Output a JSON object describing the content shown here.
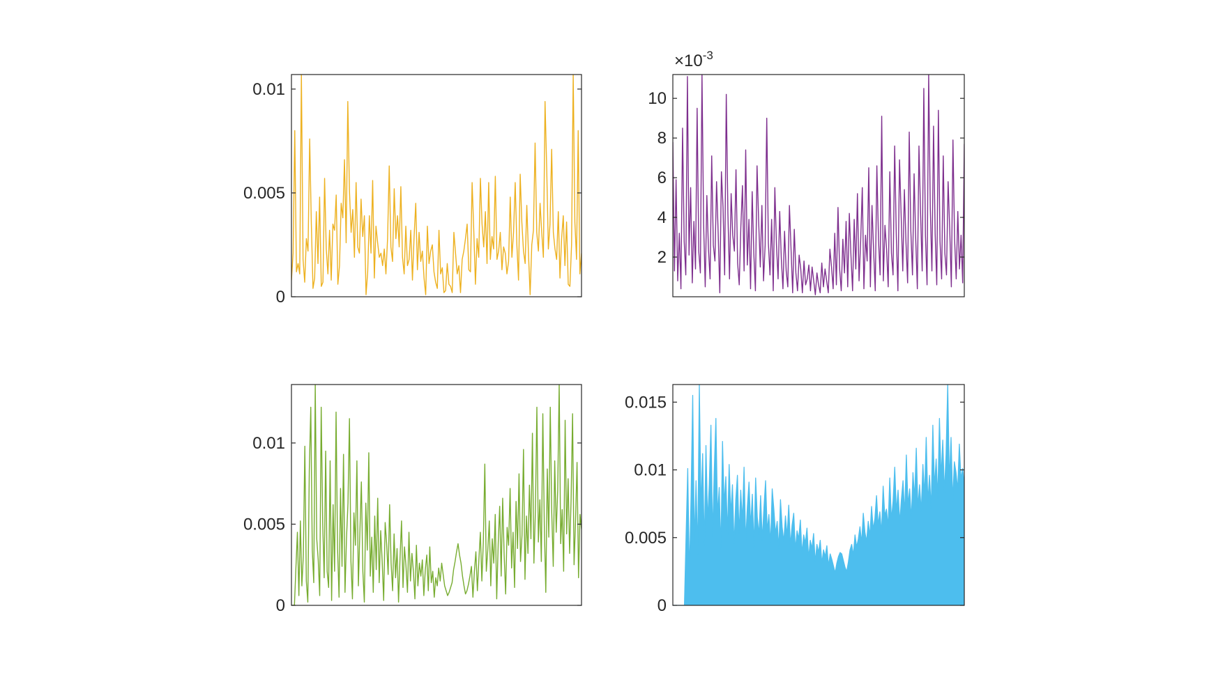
{
  "figure": {
    "background": "#ffffff",
    "axis_color": "#262626"
  },
  "chart_data": [
    {
      "type": "line",
      "title": "",
      "xlabel": "",
      "ylabel": "",
      "color": "#EDB120",
      "ylim": [
        0,
        0.0107
      ],
      "grid": false,
      "yticks": [
        0,
        0.005,
        0.01
      ],
      "ytick_labels": [
        "0",
        "0.005",
        "0.01"
      ],
      "exponent_label": "",
      "series": [
        {
          "values": [
            0.0008,
            0.0021,
            0.008,
            0.0012,
            0.0016,
            0.0011,
            0.0107,
            0.0018,
            0.0007,
            0.0028,
            0.0022,
            0.0076,
            0.0035,
            0.0004,
            0.0009,
            0.0041,
            0.0016,
            0.0048,
            0.0005,
            0.0007,
            0.0057,
            0.0023,
            0.0011,
            0.0032,
            0.0008,
            0.0035,
            0.0032,
            0.0049,
            0.0006,
            0.0015,
            0.0045,
            0.0038,
            0.0066,
            0.0026,
            0.0094,
            0.0051,
            0.0031,
            0.0042,
            0.0019,
            0.0055,
            0.0024,
            0.0021,
            0.0047,
            0.0029,
            0.0039,
            0.0001,
            0.0012,
            0.0039,
            0.0021,
            0.0056,
            0.0009,
            0.0034,
            0.0026,
            0.0019,
            0.0021,
            0.0015,
            0.0023,
            0.0011,
            0.0028,
            0.0063,
            0.0024,
            0.0017,
            0.0052,
            0.0028,
            0.0039,
            0.0024,
            0.0053,
            0.0019,
            0.0011,
            0.0034,
            0.0015,
            0.0018,
            0.0032,
            0.0008,
            0.0029,
            0.0045,
            0.0013,
            0.0031,
            0.0017,
            0.0022,
            0.0009,
            0.0001,
            0.0034,
            0.0016,
            0.0022,
            0.0025,
            0.0012,
            0.0007,
            0.0004,
            0.0032,
            0.0011,
            0.0014,
            0.0002,
            0.0003,
            0.0016,
            0.0006,
            0.0005,
            0.0002,
            0.0031,
            0.0021,
            0.0011,
            0.0015,
            0.0002,
            0.0018,
            0.0022,
            0.0028,
            0.0035,
            0.0013,
            0.0012,
            0.0055,
            0.0032,
            0.0006,
            0.0028,
            0.0019,
            0.0057,
            0.0035,
            0.0024,
            0.0041,
            0.0016,
            0.0055,
            0.0018,
            0.0029,
            0.0023,
            0.0058,
            0.0018,
            0.0022,
            0.0031,
            0.0013,
            0.0024,
            0.0021,
            0.0011,
            0.0017,
            0.0048,
            0.0019,
            0.0031,
            0.0055,
            0.0025,
            0.0008,
            0.0059,
            0.0036,
            0.0022,
            0.0016,
            0.0044,
            0.0021,
            0.0001,
            0.0025,
            0.0032,
            0.0074,
            0.0031,
            0.0022,
            0.0045,
            0.0031,
            0.0019,
            0.0094,
            0.0062,
            0.0023,
            0.0035,
            0.0071,
            0.0031,
            0.0023,
            0.0018,
            0.0041,
            0.0009,
            0.0028,
            0.0039,
            0.0015,
            0.0036,
            0.0006,
            0.0005,
            0.0025,
            0.0107,
            0.0036,
            0.0018,
            0.008,
            0.0011,
            0.0021
          ]
        }
      ]
    },
    {
      "type": "line",
      "title": "",
      "xlabel": "",
      "ylabel": "",
      "color": "#7E2F8E",
      "ylim": [
        0,
        11.2
      ],
      "grid": false,
      "yticks": [
        2,
        4,
        6,
        8,
        10
      ],
      "ytick_labels": [
        "2",
        "4",
        "6",
        "8",
        "10"
      ],
      "exponent_label": "×10",
      "exponent": "-3",
      "series": [
        {
          "values": [
            7.8,
            1.3,
            5.9,
            0.8,
            3.2,
            0.4,
            8.5,
            2.8,
            1.1,
            11.1,
            2.1,
            5.5,
            0.7,
            3.8,
            1.4,
            9.5,
            2.3,
            1.2,
            11.2,
            3.7,
            0.5,
            5.1,
            2.4,
            0.9,
            7.1,
            2.6,
            1.8,
            5.8,
            3.2,
            0.2,
            6.3,
            4.5,
            1.1,
            10.2,
            4.2,
            0.9,
            5.2,
            3.1,
            2.3,
            6.4,
            1.7,
            0.6,
            3.5,
            5.6,
            1.3,
            7.4,
            1.6,
            3.9,
            0.4,
            5.3,
            2.2,
            0.3,
            6.6,
            3.8,
            1.5,
            4.6,
            0.8,
            2.6,
            9.0,
            2.7,
            1.1,
            3.9,
            0.3,
            5.5,
            2.6,
            0.9,
            4.3,
            1.9,
            0.4,
            3.3,
            1.3,
            0.5,
            4.6,
            2.4,
            0.2,
            3.4,
            1.2,
            0.3,
            2.1,
            1.4,
            0.2,
            1.8,
            0.6,
            0.9,
            1.6,
            0.3,
            1.5,
            0.8,
            0.1,
            1.2,
            0.6,
            0.2,
            1.7,
            0.5,
            1.4,
            0.8,
            0.2,
            2.4,
            1.5,
            0.4,
            3.2,
            0.6,
            4.5,
            1.4,
            0.3,
            2.9,
            1.2,
            3.8,
            0.5,
            4.2,
            2.1,
            0.3,
            3.9,
            1.4,
            5.2,
            0.8,
            2.8,
            5.5,
            0.4,
            3.1,
            1.8,
            6.5,
            0.5,
            4.6,
            2.3,
            0.3,
            6.6,
            2.9,
            1.1,
            9.1,
            0.8,
            3.6,
            2.4,
            0.5,
            6.3,
            2.2,
            1.1,
            7.6,
            3.1,
            0.3,
            6.9,
            4.1,
            1.3,
            5.4,
            2.7,
            0.7,
            8.3,
            3.3,
            1.1,
            6.2,
            2.9,
            0.4,
            7.6,
            4.2,
            1.3,
            10.5,
            3.1,
            0.6,
            11.2,
            4.5,
            1.3,
            8.6,
            3.2,
            0.6,
            9.4,
            2.8,
            0.9,
            7.1,
            2.2,
            1.1,
            5.8,
            3.4,
            0.5,
            7.9,
            2.9,
            0.9,
            4.3,
            1.4,
            3.1,
            0.7,
            7.7
          ]
        }
      ]
    },
    {
      "type": "line",
      "title": "",
      "xlabel": "",
      "ylabel": "",
      "color": "#77AC30",
      "ylim": [
        0,
        0.0136
      ],
      "grid": false,
      "yticks": [
        0,
        0.005,
        0.01
      ],
      "ytick_labels": [
        "0",
        "0.005",
        "0.01"
      ],
      "exponent_label": "",
      "series": [
        {
          "values": [
            0,
            0,
            0,
            0.0023,
            0.0045,
            0.0006,
            0.0052,
            0.0012,
            0.0031,
            0.0098,
            0.0015,
            0.0002,
            0.0083,
            0.0122,
            0.0034,
            0.0014,
            0.0136,
            0.0041,
            0.0028,
            0.0006,
            0.0122,
            0.0051,
            0.0017,
            0.0095,
            0.0021,
            0.0011,
            0.0089,
            0.0003,
            0.0062,
            0.0021,
            0.0119,
            0.0035,
            0.0005,
            0.0072,
            0.0024,
            0.0093,
            0.0008,
            0.0041,
            0.0063,
            0.0115,
            0.0027,
            0.0004,
            0.0057,
            0.0037,
            0.0089,
            0.0012,
            0.0045,
            0.0076,
            0.0021,
            0.0002,
            0.0063,
            0.0034,
            0.0094,
            0.0018,
            0.0042,
            0.0008,
            0.0055,
            0.0022,
            0.0066,
            0.0014,
            0.0046,
            0.0027,
            0.0003,
            0.0051,
            0.0038,
            0.0019,
            0.0062,
            0.0026,
            0.0009,
            0.0044,
            0.0017,
            0.0035,
            0.0002,
            0.0029,
            0.0052,
            0.0011,
            0.0036,
            0.0024,
            0.0008,
            0.0045,
            0.0015,
            0.0032,
            0.0021,
            0.0004,
            0.0037,
            0.0012,
            0.0026,
            0.0018,
            0.0028,
            0.0006,
            0.0022,
            0.0031,
            0.0009,
            0.0036,
            0.0014,
            0.0021,
            0.0005,
            0.0017,
            0.0012,
            0.0023,
            0.0015,
            0.0026,
            0.0019,
            0.0012,
            0.0009,
            0.0006,
            0.0008,
            0.0011,
            0.0014,
            0.0022,
            0.0027,
            0.0033,
            0.0038,
            0.0031,
            0.0026,
            0.0018,
            0.0012,
            0.0007,
            0.0009,
            0.0013,
            0.0018,
            0.0024,
            0.0005,
            0.0021,
            0.0033,
            0.0009,
            0.0028,
            0.0045,
            0.0015,
            0.0039,
            0.0087,
            0.0021,
            0.0034,
            0.0052,
            0.0012,
            0.0041,
            0.0026,
            0.0056,
            0.0004,
            0.0038,
            0.0061,
            0.0018,
            0.0066,
            0.0031,
            0.0007,
            0.0048,
            0.0037,
            0.0072,
            0.0023,
            0.0045,
            0.0011,
            0.0064,
            0.0035,
            0.0081,
            0.0027,
            0.0043,
            0.0096,
            0.0016,
            0.0055,
            0.0032,
            0.0074,
            0.0041,
            0.0106,
            0.0026,
            0.0058,
            0.0122,
            0.0039,
            0.0065,
            0.0027,
            0.0118,
            0.0049,
            0.0008,
            0.0084,
            0.0042,
            0.0122,
            0.0057,
            0.0024,
            0.0089,
            0.0045,
            0.0071,
            0.0136,
            0.0038,
            0.0059,
            0.0021,
            0.0114,
            0.0044,
            0.0078,
            0.0032,
            0.0065,
            0.0118,
            0.0025,
            0.0052,
            0.0088,
            0.0017,
            0.0056,
            0.0047
          ]
        }
      ]
    },
    {
      "type": "area",
      "title": "",
      "xlabel": "",
      "ylabel": "",
      "color": "#4DBEEE",
      "ylim": [
        0,
        0.0163
      ],
      "grid": false,
      "yticks": [
        0,
        0.005,
        0.01,
        0.015
      ],
      "ytick_labels": [
        "0",
        "0.005",
        "0.01",
        "0.015"
      ],
      "exponent_label": "",
      "series": [
        {
          "values": [
            0,
            0,
            0,
            0,
            0,
            0,
            0,
            0,
            0.0052,
            0.0101,
            0.0021,
            0.0081,
            0.0155,
            0.0045,
            0.0092,
            0.0038,
            0.0163,
            0.0071,
            0.0112,
            0.0043,
            0.0118,
            0.0062,
            0.0089,
            0.0133,
            0.0051,
            0.0099,
            0.0138,
            0.0066,
            0.0087,
            0.0041,
            0.0121,
            0.0074,
            0.0095,
            0.0052,
            0.0104,
            0.0067,
            0.0089,
            0.0044,
            0.0078,
            0.0096,
            0.0053,
            0.0085,
            0.0062,
            0.0102,
            0.0047,
            0.0073,
            0.0091,
            0.0058,
            0.0082,
            0.0043,
            0.0094,
            0.0065,
            0.0052,
            0.0081,
            0.0048,
            0.0072,
            0.0092,
            0.0055,
            0.0067,
            0.0045,
            0.0086,
            0.0071,
            0.0053,
            0.0062,
            0.0042,
            0.0078,
            0.0058,
            0.0047,
            0.0066,
            0.0051,
            0.0074,
            0.0044,
            0.0059,
            0.0068,
            0.0041,
            0.0055,
            0.0049,
            0.0063,
            0.0038,
            0.0052,
            0.0046,
            0.0057,
            0.0035,
            0.0048,
            0.0042,
            0.0053,
            0.0032,
            0.0045,
            0.0039,
            0.0048,
            0.0031,
            0.0041,
            0.0036,
            0.0044,
            0.0029,
            0.0038,
            0.0034,
            0.0029,
            0.0024,
            0.0031,
            0.0036,
            0.0039,
            0.0038,
            0.0033,
            0.0028,
            0.0025,
            0.0032,
            0.0041,
            0.0045,
            0.0037,
            0.0052,
            0.0043,
            0.0049,
            0.0058,
            0.0046,
            0.0068,
            0.0054,
            0.0047,
            0.0062,
            0.0051,
            0.0073,
            0.0056,
            0.0064,
            0.0081,
            0.0059,
            0.0069,
            0.0053,
            0.0088,
            0.0066,
            0.0071,
            0.0058,
            0.0094,
            0.0063,
            0.0077,
            0.0102,
            0.0069,
            0.0085,
            0.0061,
            0.0078,
            0.0092,
            0.0067,
            0.0111,
            0.0074,
            0.0086,
            0.0063,
            0.0098,
            0.0079,
            0.0116,
            0.0072,
            0.0089,
            0.0069,
            0.0104,
            0.0081,
            0.0124,
            0.0076,
            0.0096,
            0.0071,
            0.0133,
            0.0087,
            0.0108,
            0.0079,
            0.0138,
            0.0094,
            0.0122,
            0.0083,
            0.0112,
            0.0163,
            0.0091,
            0.0124,
            0.0077,
            0.0106,
            0.0098,
            0.0085,
            0.0119,
            0.0093,
            0.0101,
            0.0088
          ]
        }
      ]
    }
  ]
}
